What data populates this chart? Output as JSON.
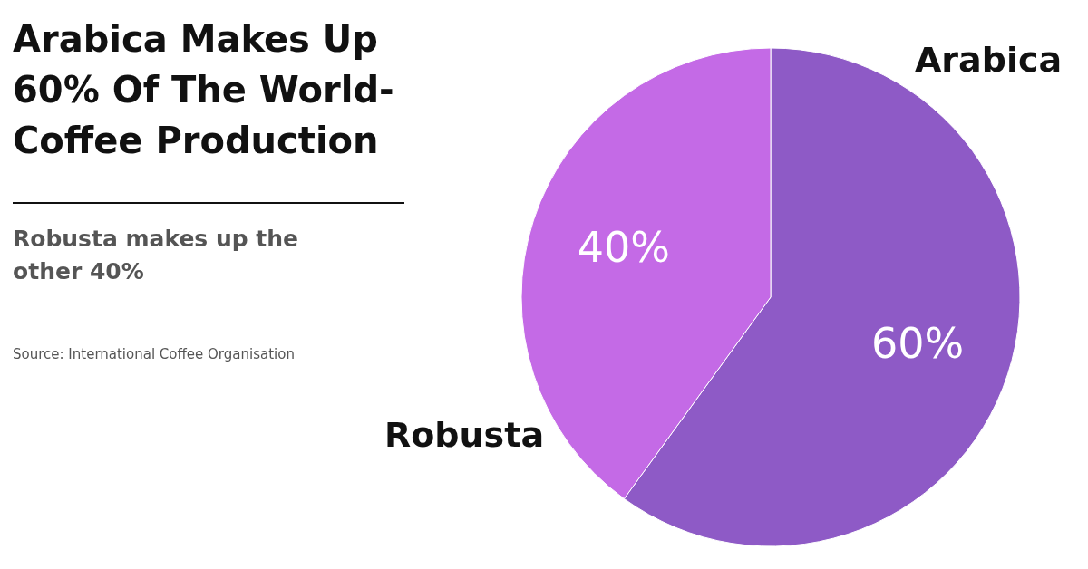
{
  "chart_data": {
    "type": "pie",
    "title": "Arabica Makes Up 60% Of The World-Coffee Production",
    "subtitle": "Robusta makes up the other 40%",
    "categories": [
      "Arabica",
      "Robusta"
    ],
    "values": [
      60,
      40
    ],
    "colors": [
      "#8e5ac6",
      "#c46ae6"
    ],
    "value_labels": [
      "60%",
      "40%"
    ],
    "annotations": [
      "Source: International Coffee Organisation"
    ]
  }
}
